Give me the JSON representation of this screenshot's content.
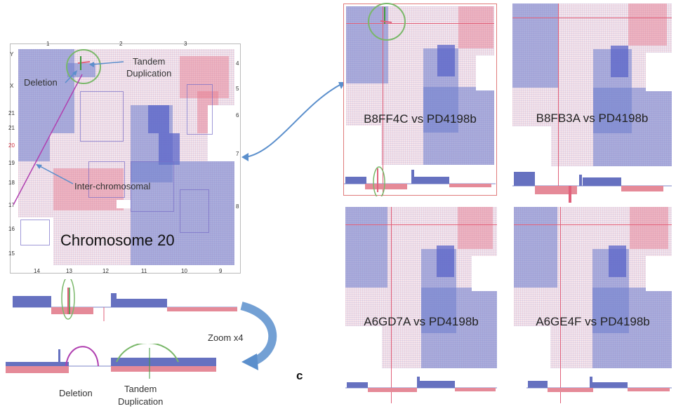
{
  "main_panel": {
    "title": "Chromosome 20",
    "annotations": {
      "tandem": "Tandem\nDuplication",
      "deletion": "Deletion",
      "inter": "Inter-chromosomal"
    },
    "left_ticks": [
      "Y",
      "X",
      "21",
      "21",
      "20",
      "19",
      "18",
      "17",
      "16",
      "15"
    ],
    "top_ticks": [
      "1",
      "2",
      "3"
    ],
    "bottom_ticks": [
      "14",
      "13",
      "12",
      "11",
      "10",
      "9"
    ],
    "right_ticks": [
      "4",
      "5",
      "6",
      "7",
      "8"
    ]
  },
  "zoom": {
    "label": "Zoom x4",
    "deletion_label": "Deletion",
    "tandem_label": "Tandem\nDuplication"
  },
  "panel_letter": "c",
  "panels": [
    {
      "label": "B8FF4C vs PD4198b"
    },
    {
      "label": "B8FB3A vs PD4198b"
    },
    {
      "label": "A6GD7A vs PD4198b"
    },
    {
      "label": "A6GE4F vs PD4198b"
    }
  ],
  "colors": {
    "blue": "#5a68c0",
    "red": "#e0607a",
    "green_circle": "#7ab86a",
    "magenta": "#b040b0",
    "arrow_blue": "#5b8fcc"
  }
}
